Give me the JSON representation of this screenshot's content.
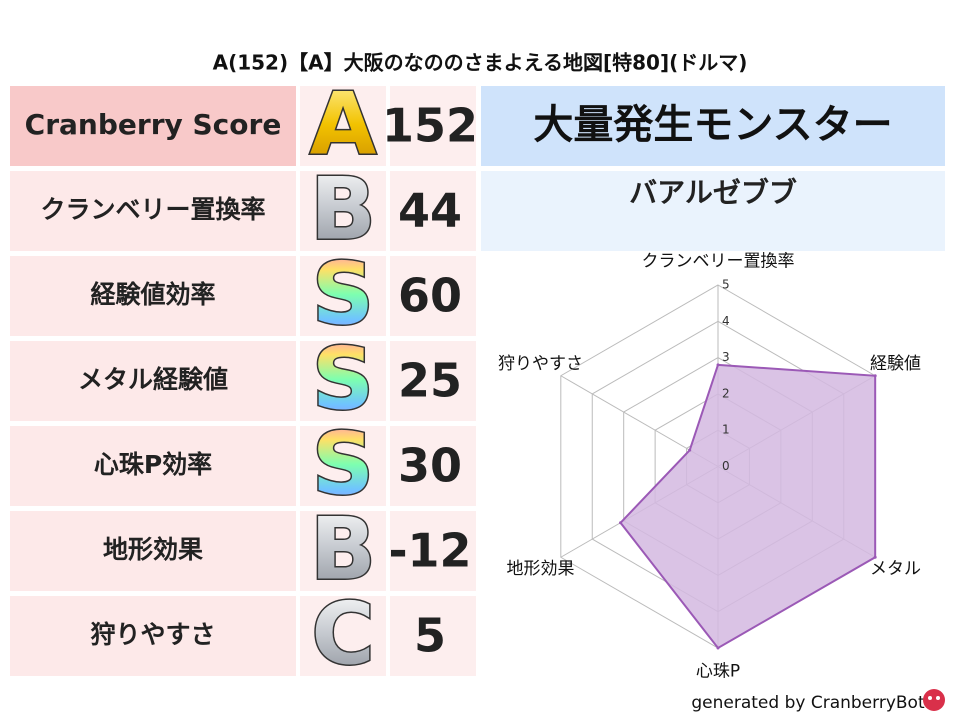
{
  "title": "A(152)【A】大阪のなののさまよえる地図[特80](ドルマ)",
  "table": {
    "header": {
      "label": "Cranberry Score",
      "grade": "A",
      "score": 152,
      "colors": [
        "#fff3a0",
        "#f2c200",
        "#c98a00"
      ]
    },
    "rows": [
      {
        "label": "クランベリー置換率",
        "grade": "B",
        "score": 44,
        "colors": [
          "#ffffff",
          "#c4c8ce",
          "#8a8f98"
        ]
      },
      {
        "label": "経験値効率",
        "grade": "S",
        "score": 60,
        "colors": [
          "#ff7ad9",
          "#ffe066",
          "#7dffb0",
          "#6fc3ff",
          "#b07dff"
        ]
      },
      {
        "label": "メタル経験値",
        "grade": "S",
        "score": 25,
        "colors": [
          "#ff7ad9",
          "#ffe066",
          "#7dffb0",
          "#6fc3ff",
          "#b07dff"
        ]
      },
      {
        "label": "心珠P効率",
        "grade": "S",
        "score": 30,
        "colors": [
          "#ff7ad9",
          "#ffe066",
          "#7dffb0",
          "#6fc3ff",
          "#b07dff"
        ]
      },
      {
        "label": "地形効果",
        "grade": "B",
        "score": -12,
        "colors": [
          "#ffffff",
          "#c4c8ce",
          "#8a8f98"
        ]
      },
      {
        "label": "狩りやすさ",
        "grade": "C",
        "score": 5,
        "colors": [
          "#ffffff",
          "#c4c8ce",
          "#8a8f98"
        ]
      }
    ]
  },
  "panel": {
    "heading": "大量発生モンスター",
    "monster": "バアルゼブブ"
  },
  "chart_data": {
    "type": "radar",
    "categories": [
      "クランベリー置換率",
      "経験値",
      "メタル",
      "心珠P",
      "地形効果",
      "狩りやすさ"
    ],
    "values": [
      2.8,
      5,
      5,
      5,
      3.1,
      0.9
    ],
    "rlim": [
      0,
      5
    ],
    "rticks": [
      0,
      1,
      2,
      3,
      4,
      5
    ],
    "color": "#9b59b6",
    "fill_color": "#d4b8e0",
    "grid": true
  },
  "footer": "generated by CranberryBot"
}
